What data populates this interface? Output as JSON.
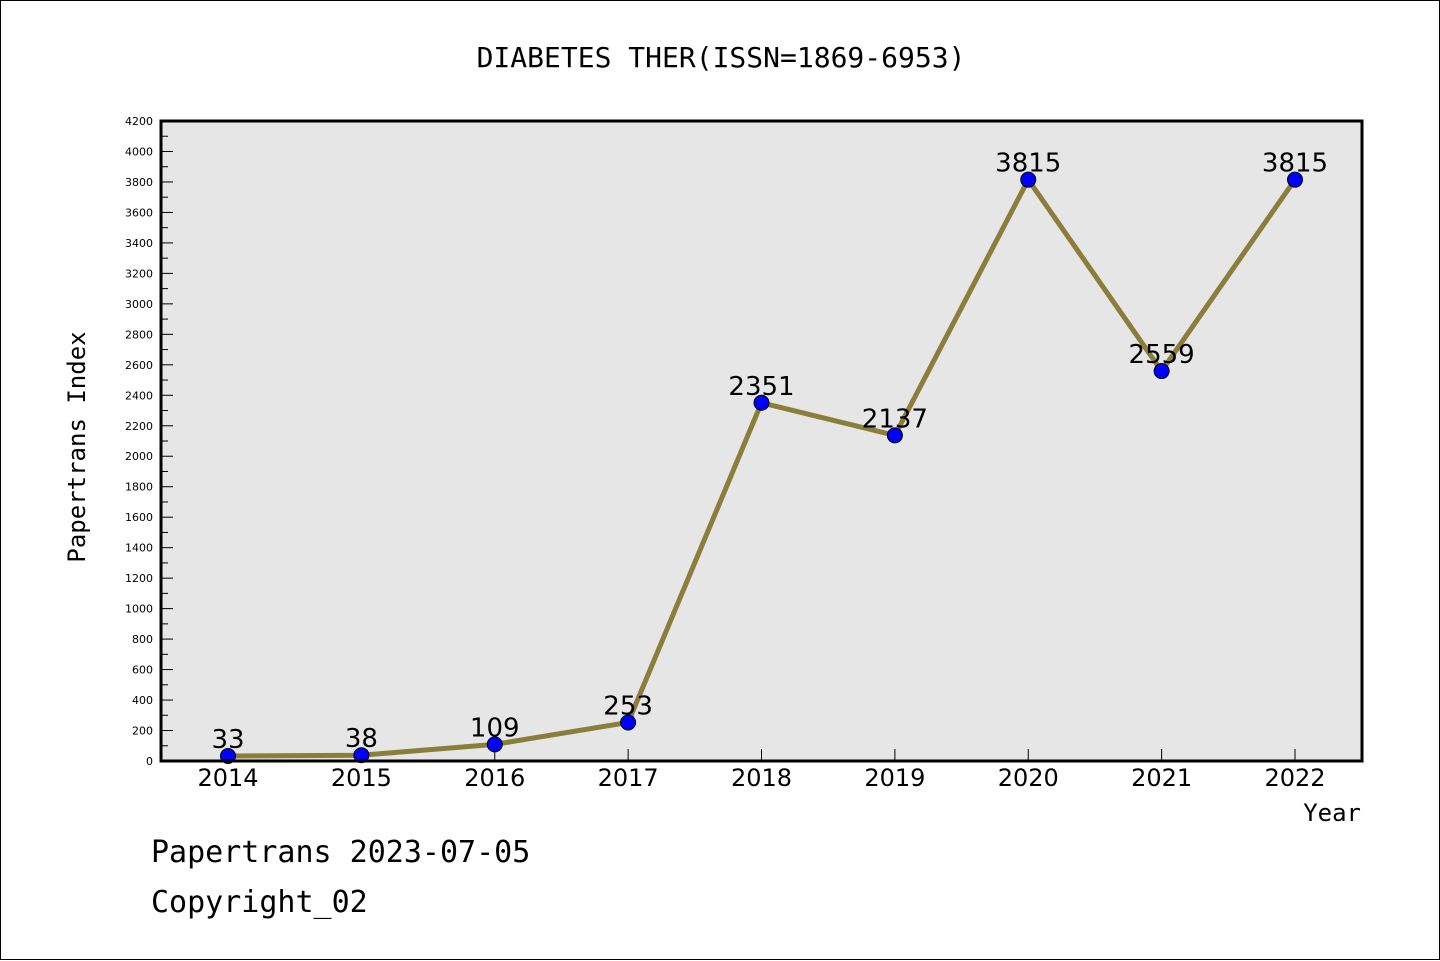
{
  "chart_data": {
    "type": "line",
    "title": "DIABETES THER(ISSN=1869-6953)",
    "xlabel": "Year",
    "ylabel": "Papertrans Index",
    "categories": [
      "2014",
      "2015",
      "2016",
      "2017",
      "2018",
      "2019",
      "2020",
      "2021",
      "2022"
    ],
    "series": [
      {
        "values": [
          33,
          38,
          109,
          253,
          2351,
          2137,
          3815,
          2559,
          3815
        ],
        "data_labels": [
          "33",
          "38",
          "109",
          "253",
          "2351",
          "2137",
          "3815",
          "2559",
          "3815"
        ],
        "line_color": "#8b7d3a",
        "marker_color": "#0000ff"
      }
    ],
    "ylim": [
      0,
      4200
    ],
    "yticks": [
      "0",
      "200",
      "400",
      "600",
      "800",
      "1000",
      "1200",
      "1400",
      "1600",
      "1800",
      "2000",
      "2200",
      "2400",
      "2600",
      "2800",
      "3000",
      "3200",
      "3400",
      "3600",
      "3800",
      "4000",
      "4200"
    ],
    "grid": false,
    "plot_background": "#e6e6e6"
  },
  "footer": {
    "line1": "Papertrans 2023-07-05",
    "line2": "Copyright_02"
  }
}
